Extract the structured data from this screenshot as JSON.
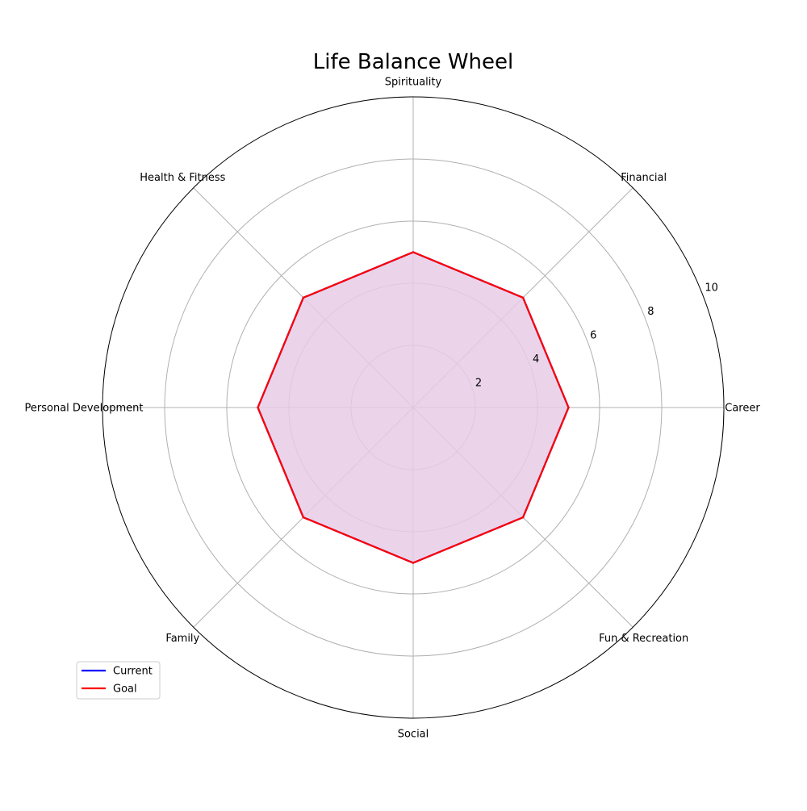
{
  "chart_data": {
    "type": "radar",
    "title": "Life Balance Wheel",
    "categories": [
      "Career",
      "Financial",
      "Spirituality",
      "Health & Fitness",
      "Personal Development",
      "Family",
      "Social",
      "Fun & Recreation"
    ],
    "series": [
      {
        "name": "Current",
        "color": "#0000ff",
        "values": [
          5,
          5,
          5,
          5,
          5,
          5,
          5,
          5
        ]
      },
      {
        "name": "Goal",
        "color": "#ff0000",
        "values": [
          5,
          5,
          5,
          5,
          5,
          5,
          5,
          5
        ]
      }
    ],
    "fill_color": "#e8cce6",
    "rlim": [
      0,
      10
    ],
    "r_ticks": [
      2,
      4,
      6,
      8,
      10
    ],
    "grid": true,
    "legend_position": "lower-left"
  }
}
